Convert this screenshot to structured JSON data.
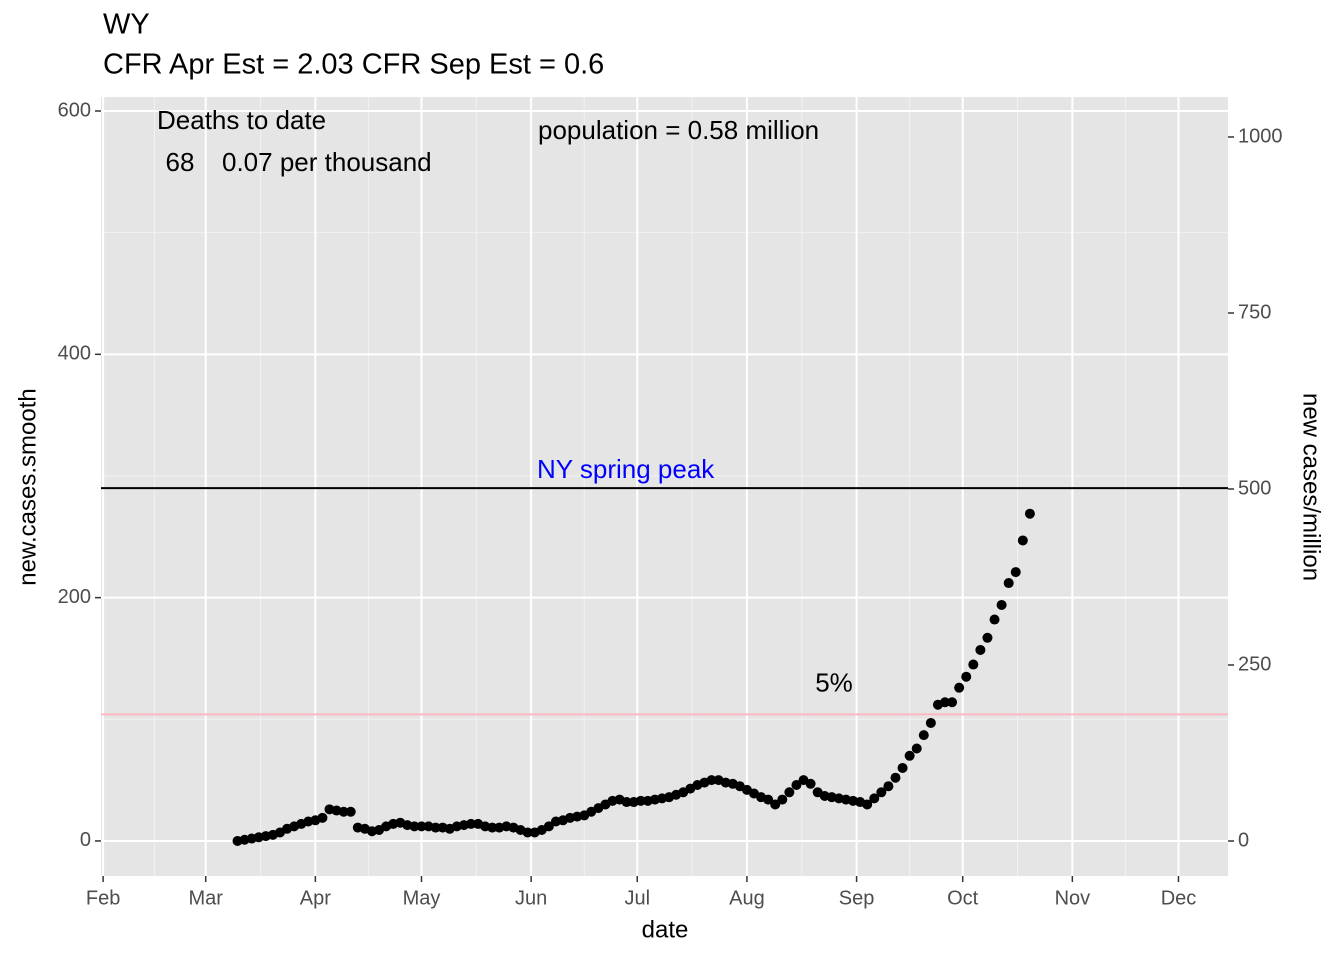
{
  "chart_data": {
    "type": "scatter",
    "title": "WY",
    "subtitle": "CFR Apr Est = 2.03   CFR Sep Est = 0.6",
    "x_label": "date",
    "y_label": "new.cases.smooth",
    "y2_label": "new cases/million",
    "annotations": [
      "Deaths to date",
      "68",
      "0.07 per thousand",
      "population = 0.58 million"
    ],
    "hlines": [
      {
        "value": 290,
        "label": "NY spring peak",
        "color": "#000000",
        "label_color": "#0000ff"
      },
      {
        "value": 104,
        "label": "5%",
        "color": "#ffb6c1",
        "label_color": "#000000"
      }
    ],
    "color": "#000000",
    "x": [
      38,
      40,
      42,
      44,
      46,
      48,
      50,
      52,
      54,
      56,
      58,
      60,
      62,
      64,
      66,
      68,
      70,
      72,
      74,
      76,
      78,
      80,
      82,
      84,
      86,
      88,
      90,
      92,
      94,
      96,
      98,
      100,
      102,
      104,
      106,
      108,
      110,
      112,
      114,
      116,
      118,
      120,
      122,
      124,
      126,
      128,
      130,
      132,
      134,
      136,
      138,
      140,
      142,
      144,
      146,
      148,
      150,
      152,
      154,
      156,
      158,
      160,
      162,
      164,
      166,
      168,
      170,
      172,
      174,
      176,
      178,
      180,
      182,
      184,
      186,
      188,
      190,
      192,
      194,
      196,
      198,
      200,
      202,
      204,
      206,
      208,
      210,
      212,
      214,
      216,
      218,
      220,
      222,
      224,
      226,
      228,
      230,
      232,
      234,
      236,
      238,
      240,
      242,
      244,
      246,
      248,
      250,
      252,
      254,
      256,
      258,
      260,
      262
    ],
    "values": [
      0,
      1,
      2,
      3,
      4,
      5,
      7,
      10,
      12,
      14,
      16,
      17,
      19,
      26,
      25,
      24,
      24,
      11,
      10,
      8,
      9,
      12,
      14,
      15,
      13,
      12,
      12,
      12,
      11,
      11,
      10,
      12,
      13,
      14,
      14,
      12,
      11,
      11,
      12,
      11,
      9,
      7,
      7,
      9,
      12,
      16,
      17,
      19,
      20,
      21,
      24,
      27,
      30,
      33,
      34,
      32,
      32,
      33,
      33,
      34,
      35,
      36,
      38,
      40,
      43,
      46,
      48,
      50,
      50,
      48,
      47,
      45,
      42,
      39,
      36,
      34,
      30,
      34,
      40,
      46,
      50,
      47,
      40,
      37,
      36,
      35,
      34,
      33,
      32,
      30,
      35,
      40,
      45,
      52,
      60,
      70,
      76,
      87,
      97,
      112,
      114,
      114,
      126,
      135,
      145,
      157,
      167,
      182,
      194,
      212,
      221,
      247,
      269
    ],
    "xlim": [
      -0.6,
      318
    ],
    "xticks": [
      {
        "value": 0,
        "label": "Feb"
      },
      {
        "value": 29,
        "label": "Mar"
      },
      {
        "value": 60,
        "label": "Apr"
      },
      {
        "value": 90,
        "label": "May"
      },
      {
        "value": 121,
        "label": "Jun"
      },
      {
        "value": 151,
        "label": "Jul"
      },
      {
        "value": 182,
        "label": "Aug"
      },
      {
        "value": 213,
        "label": "Sep"
      },
      {
        "value": 243,
        "label": "Oct"
      },
      {
        "value": 274,
        "label": "Nov"
      },
      {
        "value": 304,
        "label": "Dec"
      }
    ],
    "ylim": [
      -28.8,
      611.5
    ],
    "yticks": [
      0,
      200,
      400,
      600
    ],
    "y2lim": [
      -49.7,
      1056.8
    ],
    "y2ticks": [
      0,
      250,
      500,
      750,
      1000
    ],
    "grid": true
  }
}
